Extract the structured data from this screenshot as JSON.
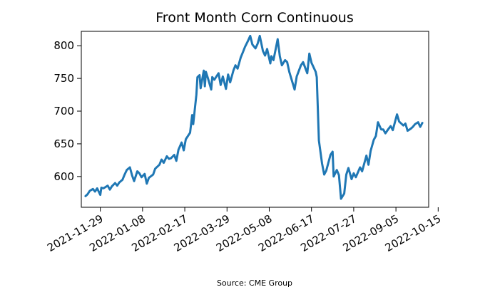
{
  "chart_data": {
    "type": "line",
    "title": "Front Month Corn Continuous",
    "xlabel": "",
    "ylabel": "",
    "source": "Source: CME Group",
    "line_color": "#1f77b4",
    "grid": false,
    "legend": "none",
    "xlim": [
      "2021-11-11",
      "2022-10-06"
    ],
    "ylim": [
      553,
      822
    ],
    "x_ticks": [
      "2021-11-29",
      "2022-01-08",
      "2022-02-17",
      "2022-03-29",
      "2022-05-08",
      "2022-06-17",
      "2022-07-27",
      "2022-09-05",
      "2022-10-15"
    ],
    "y_ticks": [
      600,
      650,
      700,
      750,
      800
    ],
    "series": [
      {
        "points": [
          [
            "2021-11-15",
            570
          ],
          [
            "2021-11-17",
            573
          ],
          [
            "2021-11-19",
            578
          ],
          [
            "2021-11-22",
            581
          ],
          [
            "2021-11-24",
            577
          ],
          [
            "2021-11-26",
            582
          ],
          [
            "2021-11-29",
            572
          ],
          [
            "2021-11-30",
            583
          ],
          [
            "2021-12-02",
            582
          ],
          [
            "2021-12-06",
            586
          ],
          [
            "2021-12-08",
            580
          ],
          [
            "2021-12-10",
            585
          ],
          [
            "2021-12-13",
            590
          ],
          [
            "2021-12-15",
            586
          ],
          [
            "2021-12-17",
            591
          ],
          [
            "2021-12-20",
            595
          ],
          [
            "2021-12-22",
            603
          ],
          [
            "2021-12-24",
            610
          ],
          [
            "2021-12-27",
            614
          ],
          [
            "2021-12-29",
            602
          ],
          [
            "2021-12-31",
            593
          ],
          [
            "2022-01-03",
            608
          ],
          [
            "2022-01-05",
            605
          ],
          [
            "2022-01-07",
            599
          ],
          [
            "2022-01-10",
            604
          ],
          [
            "2022-01-12",
            589
          ],
          [
            "2022-01-14",
            598
          ],
          [
            "2022-01-18",
            603
          ],
          [
            "2022-01-20",
            612
          ],
          [
            "2022-01-24",
            618
          ],
          [
            "2022-01-26",
            626
          ],
          [
            "2022-01-28",
            621
          ],
          [
            "2022-01-31",
            631
          ],
          [
            "2022-02-02",
            627
          ],
          [
            "2022-02-04",
            628
          ],
          [
            "2022-02-07",
            633
          ],
          [
            "2022-02-09",
            624
          ],
          [
            "2022-02-11",
            641
          ],
          [
            "2022-02-14",
            652
          ],
          [
            "2022-02-16",
            640
          ],
          [
            "2022-02-18",
            657
          ],
          [
            "2022-02-22",
            667
          ],
          [
            "2022-02-24",
            694
          ],
          [
            "2022-02-25",
            680
          ],
          [
            "2022-02-28",
            725
          ],
          [
            "2022-03-01",
            752
          ],
          [
            "2022-03-03",
            755
          ],
          [
            "2022-03-04",
            735
          ],
          [
            "2022-03-07",
            762
          ],
          [
            "2022-03-08",
            738
          ],
          [
            "2022-03-09",
            760
          ],
          [
            "2022-03-11",
            750
          ],
          [
            "2022-03-14",
            733
          ],
          [
            "2022-03-15",
            752
          ],
          [
            "2022-03-17",
            748
          ],
          [
            "2022-03-21",
            758
          ],
          [
            "2022-03-23",
            740
          ],
          [
            "2022-03-25",
            753
          ],
          [
            "2022-03-28",
            734
          ],
          [
            "2022-03-30",
            756
          ],
          [
            "2022-04-01",
            744
          ],
          [
            "2022-04-04",
            762
          ],
          [
            "2022-04-06",
            770
          ],
          [
            "2022-04-08",
            765
          ],
          [
            "2022-04-11",
            782
          ],
          [
            "2022-04-13",
            790
          ],
          [
            "2022-04-15",
            798
          ],
          [
            "2022-04-18",
            808
          ],
          [
            "2022-04-20",
            815
          ],
          [
            "2022-04-22",
            802
          ],
          [
            "2022-04-25",
            796
          ],
          [
            "2022-04-27",
            803
          ],
          [
            "2022-04-29",
            815
          ],
          [
            "2022-05-02",
            792
          ],
          [
            "2022-05-04",
            785
          ],
          [
            "2022-05-06",
            795
          ],
          [
            "2022-05-09",
            773
          ],
          [
            "2022-05-10",
            784
          ],
          [
            "2022-05-12",
            778
          ],
          [
            "2022-05-16",
            810
          ],
          [
            "2022-05-18",
            784
          ],
          [
            "2022-05-20",
            770
          ],
          [
            "2022-05-23",
            778
          ],
          [
            "2022-05-25",
            775
          ],
          [
            "2022-05-27",
            760
          ],
          [
            "2022-06-01",
            733
          ],
          [
            "2022-06-03",
            753
          ],
          [
            "2022-06-07",
            770
          ],
          [
            "2022-06-09",
            775
          ],
          [
            "2022-06-13",
            758
          ],
          [
            "2022-06-15",
            788
          ],
          [
            "2022-06-17",
            774
          ],
          [
            "2022-06-21",
            760
          ],
          [
            "2022-06-22",
            752
          ],
          [
            "2022-06-24",
            655
          ],
          [
            "2022-06-27",
            620
          ],
          [
            "2022-06-29",
            603
          ],
          [
            "2022-07-01",
            609
          ],
          [
            "2022-07-05",
            633
          ],
          [
            "2022-07-07",
            638
          ],
          [
            "2022-07-08",
            600
          ],
          [
            "2022-07-11",
            610
          ],
          [
            "2022-07-13",
            602
          ],
          [
            "2022-07-15",
            566
          ],
          [
            "2022-07-18",
            574
          ],
          [
            "2022-07-20",
            603
          ],
          [
            "2022-07-22",
            613
          ],
          [
            "2022-07-25",
            596
          ],
          [
            "2022-07-27",
            605
          ],
          [
            "2022-07-29",
            599
          ],
          [
            "2022-08-02",
            614
          ],
          [
            "2022-08-04",
            608
          ],
          [
            "2022-08-08",
            632
          ],
          [
            "2022-08-10",
            618
          ],
          [
            "2022-08-12",
            639
          ],
          [
            "2022-08-15",
            656
          ],
          [
            "2022-08-17",
            662
          ],
          [
            "2022-08-19",
            683
          ],
          [
            "2022-08-22",
            672
          ],
          [
            "2022-08-24",
            672
          ],
          [
            "2022-08-26",
            666
          ],
          [
            "2022-08-29",
            673
          ],
          [
            "2022-08-31",
            677
          ],
          [
            "2022-09-02",
            671
          ],
          [
            "2022-09-06",
            695
          ],
          [
            "2022-09-08",
            684
          ],
          [
            "2022-09-12",
            678
          ],
          [
            "2022-09-14",
            681
          ],
          [
            "2022-09-16",
            670
          ],
          [
            "2022-09-19",
            673
          ],
          [
            "2022-09-21",
            676
          ],
          [
            "2022-09-23",
            680
          ],
          [
            "2022-09-26",
            683
          ],
          [
            "2022-09-28",
            676
          ],
          [
            "2022-09-30",
            682
          ]
        ]
      }
    ]
  }
}
